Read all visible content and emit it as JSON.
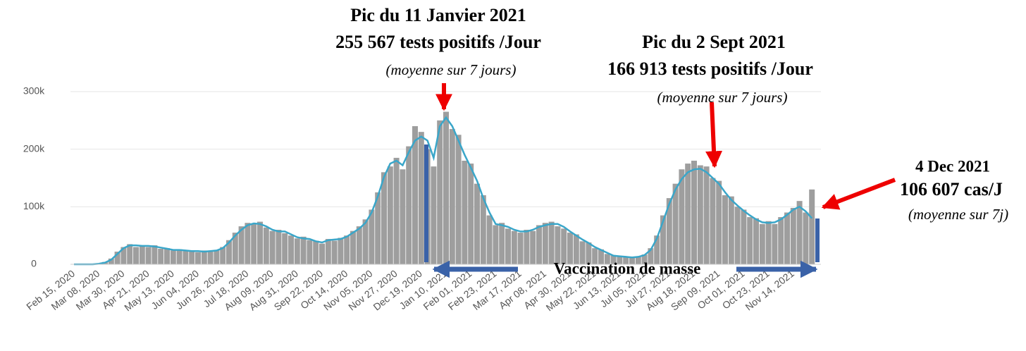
{
  "chart_data": {
    "type": "bar_line",
    "annotations": [
      "Pic du 11 Janvier 2021",
      "255 567 tests positifs /Jour",
      "(moyenne sur 7 jours)",
      "Pic du 2 Sept 2021",
      "166 913 tests positifs /Jour",
      "(moyenne sur 7 jours)",
      "4 Dec  2021",
      "106 607 cas/J",
      "(moyenne sur 7j)",
      "Vaccination de masse"
    ],
    "categories": [
      "Feb 15, 2020",
      null,
      null,
      null,
      "Mar 08, 2020",
      null,
      null,
      null,
      "Mar 30, 2020",
      null,
      null,
      null,
      "Apr 21, 2020",
      null,
      null,
      null,
      "May 13, 2020",
      null,
      null,
      null,
      "Jun 04, 2020",
      null,
      null,
      null,
      "Jun 26, 2020",
      null,
      null,
      null,
      "Jul 18, 2020",
      null,
      null,
      null,
      "Aug 09, 2020",
      null,
      null,
      null,
      "Aug 31, 2020",
      null,
      null,
      null,
      "Sep 22, 2020",
      null,
      null,
      null,
      "Oct 14, 2020",
      null,
      null,
      null,
      "Nov 05, 2020",
      null,
      null,
      null,
      "Nov 27, 2020",
      null,
      null,
      null,
      "Dec 19, 2020",
      null,
      null,
      null,
      "Jan 10, 2021",
      null,
      null,
      null,
      "Feb 01, 2021",
      null,
      null,
      null,
      "Feb 23, 2021",
      null,
      null,
      null,
      "Mar 17, 2021",
      null,
      null,
      null,
      "Apr 08, 2021",
      null,
      null,
      null,
      "Apr 30, 2021",
      null,
      null,
      null,
      "May 22, 2021",
      null,
      null,
      null,
      "Jun 13, 2021",
      null,
      null,
      null,
      "Jul 05, 2021",
      null,
      null,
      null,
      "Jul 27, 2021",
      null,
      null,
      null,
      "Aug 18, 2021",
      null,
      null,
      null,
      "Sep 09, 2021",
      null,
      null,
      null,
      "Oct 01, 2021",
      null,
      null,
      null,
      "Oct 23, 2021",
      null,
      null,
      null,
      "Nov 14, 2021",
      null,
      null,
      null
    ],
    "series": [
      {
        "type": "bar",
        "color": "#9e9e9e",
        "values": [
          0,
          0,
          0,
          0,
          1000,
          4000,
          10000,
          22000,
          30000,
          35000,
          30000,
          33000,
          30000,
          33000,
          27000,
          28000,
          24000,
          26000,
          23000,
          24000,
          21000,
          24000,
          22000,
          25000,
          30000,
          42000,
          55000,
          66000,
          72000,
          70000,
          74000,
          64000,
          58000,
          60000,
          54000,
          50000,
          45000,
          48000,
          42000,
          41000,
          36000,
          44000,
          41000,
          46000,
          50000,
          58000,
          66000,
          78000,
          95000,
          125000,
          160000,
          170000,
          185000,
          165000,
          205000,
          240000,
          230000,
          200000,
          170000,
          250000,
          265000,
          235000,
          225000,
          180000,
          175000,
          140000,
          120000,
          85000,
          68000,
          72000,
          62000,
          58000,
          55000,
          60000,
          58000,
          68000,
          72000,
          74000,
          66000,
          62000,
          55000,
          52000,
          40000,
          38000,
          28000,
          26000,
          18000,
          16000,
          13000,
          14000,
          11000,
          14000,
          17000,
          28000,
          50000,
          85000,
          115000,
          140000,
          165000,
          175000,
          180000,
          172000,
          170000,
          150000,
          145000,
          120000,
          118000,
          100000,
          95000,
          82000,
          80000,
          70000,
          75000,
          70000,
          82000,
          90000,
          98000,
          110000,
          90000,
          130000
        ]
      },
      {
        "type": "line",
        "color": "#3aa6c9",
        "values": [
          0,
          0,
          0,
          0,
          1000,
          3000,
          8000,
          18000,
          28000,
          33000,
          33000,
          32000,
          32000,
          31000,
          29000,
          27000,
          25000,
          25000,
          24000,
          23000,
          23000,
          22000,
          23000,
          24000,
          28000,
          38000,
          50000,
          60000,
          68000,
          71000,
          70000,
          66000,
          60000,
          57000,
          57000,
          52000,
          47000,
          45000,
          44000,
          40000,
          38000,
          42000,
          43000,
          44000,
          48000,
          55000,
          62000,
          72000,
          90000,
          118000,
          152000,
          175000,
          180000,
          172000,
          195000,
          215000,
          222000,
          215000,
          185000,
          240000,
          255000,
          240000,
          215000,
          190000,
          168000,
          145000,
          115000,
          90000,
          70000,
          68000,
          65000,
          60000,
          57000,
          57000,
          60000,
          65000,
          68000,
          70000,
          70000,
          65000,
          57000,
          50000,
          43000,
          37000,
          30000,
          25000,
          20000,
          15000,
          14000,
          13000,
          12000,
          13000,
          16000,
          25000,
          45000,
          75000,
          105000,
          130000,
          148000,
          160000,
          165000,
          166000,
          160000,
          150000,
          140000,
          125000,
          112000,
          102000,
          93000,
          85000,
          78000,
          73000,
          72000,
          73000,
          78000,
          86000,
          95000,
          100000,
          92000,
          80000
        ]
      }
    ],
    "ylim": [
      0,
      300000
    ],
    "yticks": [
      0,
      {
        "value": 100000,
        "label": "100k"
      },
      {
        "value": 200000,
        "label": "200k"
      },
      {
        "value": 300000,
        "label": "300k"
      }
    ],
    "grid": true
  }
}
